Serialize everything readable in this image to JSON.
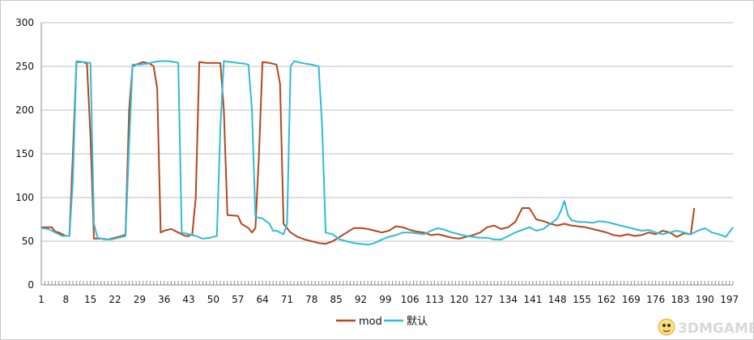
{
  "chart_data": {
    "type": "line",
    "title": "",
    "xlabel": "",
    "ylabel": "",
    "ylim": [
      0,
      300
    ],
    "yticks": [
      0,
      50,
      100,
      150,
      200,
      250,
      300
    ],
    "xlim": [
      1,
      198
    ],
    "xticks": [
      1,
      8,
      15,
      22,
      29,
      36,
      43,
      50,
      57,
      64,
      71,
      78,
      85,
      92,
      99,
      106,
      113,
      120,
      127,
      134,
      141,
      148,
      155,
      162,
      169,
      176,
      183,
      190,
      197
    ],
    "grid": "horizontal",
    "legend_position": "bottom",
    "series": [
      {
        "name": "mod",
        "color": "#b5461d",
        "points": [
          [
            1,
            66
          ],
          [
            4,
            66
          ],
          [
            5,
            61
          ],
          [
            6,
            60
          ],
          [
            7,
            58
          ],
          [
            8,
            56
          ],
          [
            9,
            56
          ],
          [
            10,
            150
          ],
          [
            11,
            255
          ],
          [
            13,
            255
          ],
          [
            14,
            253
          ],
          [
            15,
            170
          ],
          [
            16,
            53
          ],
          [
            18,
            53
          ],
          [
            20,
            52
          ],
          [
            22,
            54
          ],
          [
            24,
            56
          ],
          [
            25,
            58
          ],
          [
            26,
            200
          ],
          [
            27,
            250
          ],
          [
            28,
            252
          ],
          [
            30,
            255
          ],
          [
            32,
            253
          ],
          [
            33,
            250
          ],
          [
            34,
            225
          ],
          [
            35,
            60
          ],
          [
            36,
            62
          ],
          [
            38,
            64
          ],
          [
            40,
            60
          ],
          [
            42,
            56
          ],
          [
            43,
            56
          ],
          [
            44,
            58
          ],
          [
            45,
            100
          ],
          [
            46,
            255
          ],
          [
            48,
            254
          ],
          [
            52,
            254
          ],
          [
            53,
            200
          ],
          [
            54,
            80
          ],
          [
            57,
            79
          ],
          [
            58,
            70
          ],
          [
            60,
            65
          ],
          [
            61,
            60
          ],
          [
            62,
            65
          ],
          [
            63,
            150
          ],
          [
            64,
            255
          ],
          [
            66,
            254
          ],
          [
            68,
            252
          ],
          [
            69,
            230
          ],
          [
            70,
            70
          ],
          [
            72,
            60
          ],
          [
            74,
            55
          ],
          [
            76,
            52
          ],
          [
            78,
            50
          ],
          [
            80,
            48
          ],
          [
            82,
            47
          ],
          [
            84,
            50
          ],
          [
            86,
            55
          ],
          [
            88,
            60
          ],
          [
            90,
            65
          ],
          [
            92,
            65
          ],
          [
            94,
            64
          ],
          [
            96,
            62
          ],
          [
            98,
            60
          ],
          [
            100,
            62
          ],
          [
            102,
            67
          ],
          [
            104,
            66
          ],
          [
            106,
            63
          ],
          [
            108,
            61
          ],
          [
            110,
            60
          ],
          [
            112,
            57
          ],
          [
            114,
            58
          ],
          [
            116,
            56
          ],
          [
            118,
            54
          ],
          [
            120,
            53
          ],
          [
            122,
            55
          ],
          [
            124,
            57
          ],
          [
            126,
            60
          ],
          [
            128,
            66
          ],
          [
            130,
            68
          ],
          [
            132,
            64
          ],
          [
            134,
            66
          ],
          [
            136,
            72
          ],
          [
            138,
            88
          ],
          [
            140,
            88
          ],
          [
            142,
            75
          ],
          [
            144,
            73
          ],
          [
            146,
            70
          ],
          [
            148,
            68
          ],
          [
            150,
            70
          ],
          [
            152,
            68
          ],
          [
            154,
            67
          ],
          [
            156,
            66
          ],
          [
            158,
            64
          ],
          [
            160,
            62
          ],
          [
            162,
            60
          ],
          [
            164,
            57
          ],
          [
            166,
            56
          ],
          [
            168,
            58
          ],
          [
            170,
            56
          ],
          [
            172,
            57
          ],
          [
            174,
            60
          ],
          [
            176,
            58
          ],
          [
            178,
            62
          ],
          [
            180,
            60
          ],
          [
            182,
            55
          ],
          [
            184,
            59
          ],
          [
            186,
            58
          ],
          [
            187,
            88
          ]
        ]
      },
      {
        "name": "默认",
        "color": "#2fbcd8",
        "points": [
          [
            1,
            65
          ],
          [
            3,
            64
          ],
          [
            5,
            60
          ],
          [
            7,
            56
          ],
          [
            8,
            56
          ],
          [
            9,
            56
          ],
          [
            10,
            120
          ],
          [
            11,
            256
          ],
          [
            13,
            255
          ],
          [
            15,
            254
          ],
          [
            16,
            70
          ],
          [
            17,
            54
          ],
          [
            19,
            52
          ],
          [
            21,
            52
          ],
          [
            23,
            54
          ],
          [
            25,
            56
          ],
          [
            26,
            160
          ],
          [
            27,
            252
          ],
          [
            29,
            252
          ],
          [
            31,
            253
          ],
          [
            33,
            255
          ],
          [
            35,
            256
          ],
          [
            37,
            256
          ],
          [
            39,
            255
          ],
          [
            40,
            254
          ],
          [
            41,
            60
          ],
          [
            43,
            58
          ],
          [
            45,
            56
          ],
          [
            47,
            53
          ],
          [
            49,
            54
          ],
          [
            51,
            56
          ],
          [
            52,
            180
          ],
          [
            53,
            256
          ],
          [
            55,
            255
          ],
          [
            57,
            254
          ],
          [
            59,
            253
          ],
          [
            60,
            252
          ],
          [
            61,
            200
          ],
          [
            62,
            78
          ],
          [
            64,
            76
          ],
          [
            66,
            70
          ],
          [
            67,
            62
          ],
          [
            68,
            62
          ],
          [
            69,
            60
          ],
          [
            70,
            58
          ],
          [
            71,
            70
          ],
          [
            72,
            250
          ],
          [
            73,
            256
          ],
          [
            75,
            254
          ],
          [
            78,
            252
          ],
          [
            80,
            250
          ],
          [
            81,
            180
          ],
          [
            82,
            60
          ],
          [
            84,
            58
          ],
          [
            85,
            55
          ],
          [
            86,
            52
          ],
          [
            88,
            50
          ],
          [
            90,
            48
          ],
          [
            92,
            47
          ],
          [
            94,
            46
          ],
          [
            96,
            48
          ],
          [
            98,
            52
          ],
          [
            100,
            55
          ],
          [
            102,
            57
          ],
          [
            104,
            60
          ],
          [
            106,
            60
          ],
          [
            108,
            59
          ],
          [
            110,
            58
          ],
          [
            112,
            62
          ],
          [
            114,
            65
          ],
          [
            116,
            63
          ],
          [
            118,
            60
          ],
          [
            120,
            58
          ],
          [
            122,
            56
          ],
          [
            124,
            55
          ],
          [
            126,
            54
          ],
          [
            128,
            54
          ],
          [
            130,
            52
          ],
          [
            132,
            52
          ],
          [
            134,
            56
          ],
          [
            136,
            60
          ],
          [
            138,
            63
          ],
          [
            140,
            66
          ],
          [
            142,
            62
          ],
          [
            144,
            64
          ],
          [
            146,
            70
          ],
          [
            148,
            76
          ],
          [
            149,
            85
          ],
          [
            150,
            96
          ],
          [
            151,
            80
          ],
          [
            152,
            74
          ],
          [
            154,
            72
          ],
          [
            156,
            72
          ],
          [
            158,
            71
          ],
          [
            160,
            73
          ],
          [
            162,
            72
          ],
          [
            164,
            70
          ],
          [
            166,
            68
          ],
          [
            168,
            66
          ],
          [
            170,
            64
          ],
          [
            172,
            62
          ],
          [
            174,
            63
          ],
          [
            176,
            60
          ],
          [
            178,
            58
          ],
          [
            180,
            60
          ],
          [
            182,
            62
          ],
          [
            184,
            60
          ],
          [
            186,
            58
          ],
          [
            188,
            62
          ],
          [
            190,
            65
          ],
          [
            192,
            60
          ],
          [
            194,
            58
          ],
          [
            196,
            55
          ],
          [
            198,
            66
          ]
        ]
      }
    ]
  },
  "watermark": {
    "text": "3DMGAME",
    "icon": "mascot-icon"
  }
}
